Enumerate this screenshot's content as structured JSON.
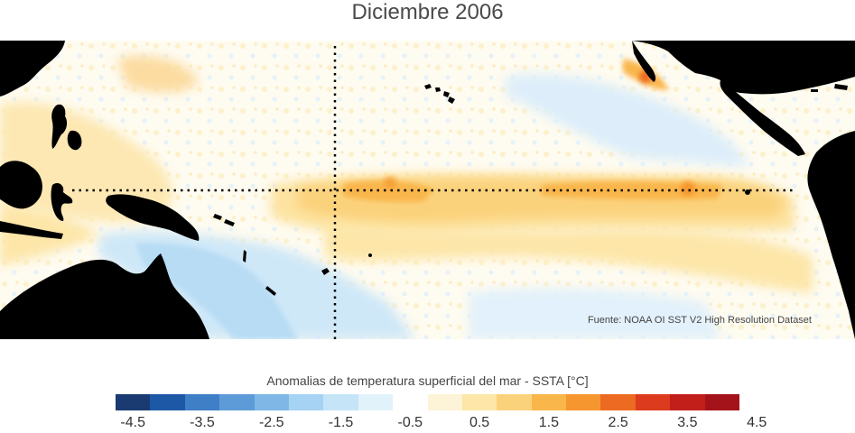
{
  "title": "Diciembre 2006",
  "source": "Fuente: NOAA OI SST V2 High Resolution Dataset",
  "colorbar": {
    "label": "Anomalias de temperatura superficial del mar - SSTA  [°C]",
    "colors": [
      "#1a3a72",
      "#1d58a6",
      "#3f7fc6",
      "#5d9bd8",
      "#7fb7e6",
      "#a6d3f3",
      "#c5e4f8",
      "#e2f2fb",
      "#ffffff",
      "#fdf3d7",
      "#fde6a8",
      "#fbd27c",
      "#f9b64b",
      "#f6962f",
      "#ec6a22",
      "#dc3b1d",
      "#c21f1a",
      "#a5131a"
    ],
    "ticks": [
      "-4.5",
      "-3.5",
      "-2.5",
      "-1.5",
      "-0.5",
      "0.5",
      "1.5",
      "2.5",
      "3.5",
      "4.5"
    ],
    "range": [
      -4.5,
      4.5
    ]
  },
  "map": {
    "region": "Tropical Pacific",
    "land_color": "#000000",
    "reference_lines": [
      {
        "type": "meridian",
        "style": "dotted",
        "color": "#000000"
      },
      {
        "type": "equator",
        "style": "dotted",
        "color": "#000000"
      }
    ]
  }
}
